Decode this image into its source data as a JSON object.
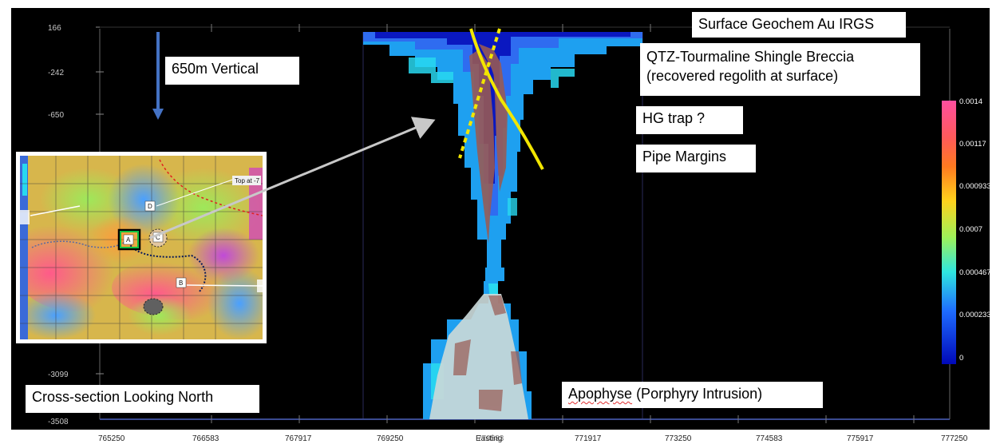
{
  "y_ticks": [
    "166",
    "-242",
    "-650",
    "-3099",
    "-3508"
  ],
  "x_ticks": [
    "765250",
    "766583",
    "767917",
    "769250",
    "Easting",
    "770583",
    "771917",
    "773250",
    "774583",
    "775917",
    "777250"
  ],
  "colorbar": {
    "labels": [
      "0.0014",
      "0.00117",
      "0.000933",
      "0.0007",
      "0.000467",
      "0.000233",
      "0"
    ],
    "colors": [
      "#ff4fa0",
      "#ff6a2a",
      "#ffd21c",
      "#9df25a",
      "#2fe6e0",
      "#1e6bff",
      "#0008b8"
    ]
  },
  "annotations": {
    "vertical": "650m Vertical",
    "surface_geochem": "Surface Geochem Au IRGS",
    "breccia": "QTZ-Tourmaline Shingle Breccia (recovered regolith at surface)",
    "hg_trap": "HG trap ?",
    "pipe_margins": "Pipe Margins",
    "apophyse": "Apophyse (Porphyry Intrusion)",
    "apophyse_underlined": "Apophyse",
    "apophyse_rest": " (Porphyry Intrusion)",
    "cross_section": "Cross-section Looking North"
  },
  "inset": {
    "top_label": "Top at -7",
    "targets": [
      "A",
      "B",
      "C",
      "D"
    ]
  },
  "colors": {
    "background": "#000000",
    "line_yellow": "#f2e600",
    "breccia_brown": "#9a5a52",
    "intrusion": "#c9d8d8",
    "arrow_blue": "#4472c4",
    "arrow_grey": "#c8c8c8"
  }
}
